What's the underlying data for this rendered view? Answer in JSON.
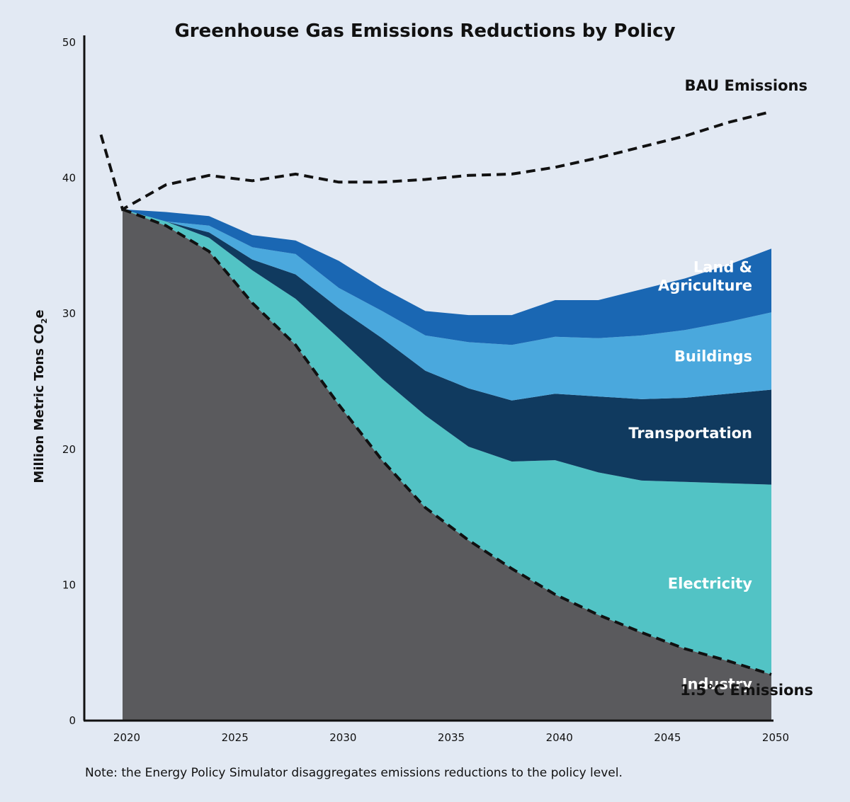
{
  "chart_data": {
    "type": "area",
    "title": "Greenhouse Gas Emissions Reductions by Policy",
    "ylabel": {
      "main": "Million Metric Tons CO",
      "sub": "2",
      "tail": "e"
    },
    "xlabel": "",
    "xlim": [
      2018,
      2050
    ],
    "ylim": [
      0,
      50
    ],
    "x_ticks": [
      2020,
      2025,
      2030,
      2035,
      2040,
      2045,
      2050
    ],
    "y_ticks": [
      0,
      10,
      20,
      30,
      40,
      50
    ],
    "grid": false,
    "x": [
      2020,
      2022,
      2024,
      2026,
      2028,
      2030,
      2032,
      2034,
      2036,
      2038,
      2040,
      2042,
      2044,
      2046,
      2048,
      2050
    ],
    "series": [
      {
        "name": "Industry",
        "color": "#5a5a5d",
        "values": [
          37.7,
          36.5,
          34.6,
          30.8,
          27.7,
          23.3,
          19.2,
          15.7,
          13.3,
          11.2,
          9.3,
          7.8,
          6.5,
          5.3,
          4.4,
          3.4
        ]
      },
      {
        "name": "Electricity",
        "color": "#52c3c5",
        "values": [
          0,
          0.3,
          1.0,
          2.4,
          3.4,
          4.9,
          6.0,
          6.8,
          6.9,
          7.9,
          9.9,
          10.5,
          11.2,
          12.3,
          13.1,
          14.0
        ]
      },
      {
        "name": "Transportation",
        "color": "#103a5f",
        "values": [
          0,
          0,
          0.4,
          0.8,
          1.8,
          2.2,
          3.0,
          3.3,
          4.3,
          4.5,
          4.9,
          5.6,
          6.0,
          6.2,
          6.6,
          7.0
        ]
      },
      {
        "name": "Buildings",
        "color": "#4aa8dd",
        "values": [
          0,
          0,
          0.5,
          0.9,
          1.5,
          1.5,
          2.0,
          2.6,
          3.4,
          4.1,
          4.2,
          4.3,
          4.7,
          5.0,
          5.3,
          5.7
        ]
      },
      {
        "name": "Land & Agriculture",
        "color": "#1a67b3",
        "values": [
          0,
          0.7,
          0.7,
          0.9,
          1.0,
          2.0,
          1.7,
          1.8,
          2.0,
          2.2,
          2.7,
          2.8,
          3.4,
          3.8,
          4.2,
          4.7
        ]
      }
    ],
    "bau_emissions": {
      "name": "BAU Emissions",
      "x": [
        2019,
        2020,
        2022,
        2024,
        2026,
        2028,
        2030,
        2032,
        2034,
        2036,
        2038,
        2040,
        2042,
        2044,
        2046,
        2048,
        2050
      ],
      "values": [
        43.2,
        37.7,
        39.5,
        40.2,
        39.8,
        40.3,
        39.7,
        39.7,
        39.9,
        40.2,
        40.3,
        40.8,
        41.5,
        42.3,
        43.1,
        44.1,
        44.9
      ]
    },
    "target_emissions": {
      "name": "1.5°C Emissions",
      "x": [
        2020,
        2022,
        2024,
        2026,
        2028,
        2030,
        2032,
        2034,
        2036,
        2038,
        2040,
        2042,
        2044,
        2046,
        2048,
        2050
      ],
      "values": [
        37.7,
        36.5,
        34.6,
        30.8,
        27.7,
        23.3,
        19.2,
        15.7,
        13.3,
        11.2,
        9.3,
        7.8,
        6.5,
        5.3,
        4.4,
        3.4
      ]
    },
    "area_labels": [
      {
        "name": "Land & Agriculture",
        "lines": [
          "Land &",
          "Agriculture"
        ]
      },
      {
        "name": "Buildings",
        "lines": [
          "Buildings"
        ]
      },
      {
        "name": "Transportation",
        "lines": [
          "Transportation"
        ]
      },
      {
        "name": "Electricity",
        "lines": [
          "Electricity"
        ]
      },
      {
        "name": "Industry",
        "lines": [
          "Industry"
        ]
      }
    ],
    "note": "Note: the Energy Policy Simulator disaggregates emissions reductions to the policy level."
  }
}
